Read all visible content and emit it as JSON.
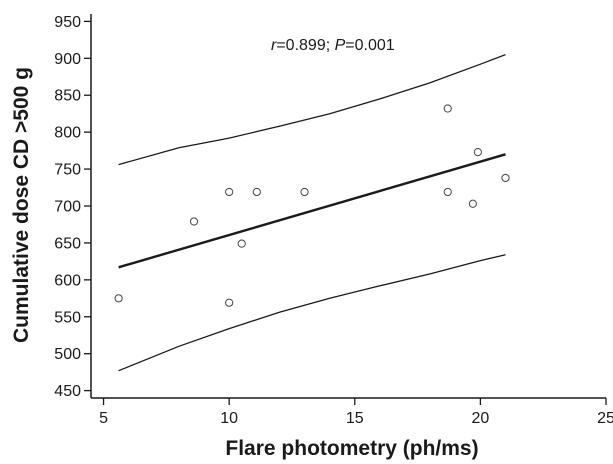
{
  "chart_data": {
    "type": "scatter",
    "xlabel": "Flare photometry (ph/ms)",
    "ylabel": "Cumulative dose CD >500 g",
    "xlim": [
      4.5,
      25
    ],
    "ylim": [
      440,
      960
    ],
    "x_ticks": [
      5,
      10,
      15,
      20,
      25
    ],
    "y_ticks": [
      450,
      500,
      550,
      600,
      650,
      700,
      750,
      800,
      850,
      900,
      950
    ],
    "grid": false,
    "annotation": {
      "r_symbol": "r",
      "r_text": "=0.899; ",
      "p_symbol": "P",
      "p_text": "=0.001"
    },
    "points": [
      {
        "x": 5.6,
        "y": 575
      },
      {
        "x": 8.6,
        "y": 679
      },
      {
        "x": 10.0,
        "y": 719
      },
      {
        "x": 10.0,
        "y": 569
      },
      {
        "x": 10.5,
        "y": 649
      },
      {
        "x": 11.1,
        "y": 719
      },
      {
        "x": 13.0,
        "y": 719
      },
      {
        "x": 18.7,
        "y": 832
      },
      {
        "x": 18.7,
        "y": 719
      },
      {
        "x": 19.7,
        "y": 703
      },
      {
        "x": 19.9,
        "y": 773
      },
      {
        "x": 21.0,
        "y": 738
      }
    ],
    "regression_line": {
      "x": [
        5.6,
        21.0
      ],
      "y": [
        617,
        770
      ]
    },
    "upper_band": {
      "x": [
        5.6,
        8,
        10,
        12,
        14,
        16,
        18,
        20,
        21.0
      ],
      "y": [
        756,
        779,
        792,
        808,
        825,
        845,
        867,
        892,
        905
      ]
    },
    "lower_band": {
      "x": [
        5.6,
        8,
        10,
        12,
        14,
        16,
        18,
        20,
        21.0
      ],
      "y": [
        477,
        510,
        534,
        556,
        575,
        592,
        608,
        626,
        634
      ]
    }
  }
}
